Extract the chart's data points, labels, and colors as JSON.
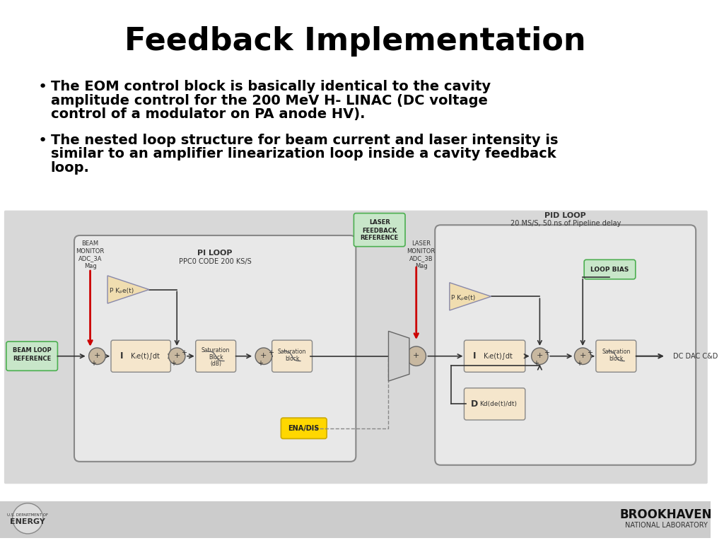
{
  "title": "Feedback Implementation",
  "bullet1_line1": "The EOM control block is basically identical to the cavity",
  "bullet1_line2": "amplitude control for the 200 MeV H- LINAC (DC voltage",
  "bullet1_line3": "control of a modulator on PA anode HV).",
  "bullet2_line1": "The nested loop structure for beam current and laser intensity is",
  "bullet2_line2": "similar to an amplifier linearization loop inside a cavity feedback",
  "bullet2_line3": "loop.",
  "bg_color": "#ffffff",
  "text_color": "#000000",
  "title_fontsize": 32,
  "body_fontsize": 14,
  "diagram_bg": "#f0f0f0",
  "block_fill": "#f5e6cc",
  "block_edge": "#888888",
  "green_fill": "#c8e6c9",
  "green_edge": "#4caf50",
  "yellow_fill": "#ffd700",
  "yellow_edge": "#ccaa00",
  "loop_bg": "#e8e8e8",
  "loop_edge": "#aaaaaa",
  "red_arrow": "#cc0000",
  "dark_arrow": "#333333"
}
